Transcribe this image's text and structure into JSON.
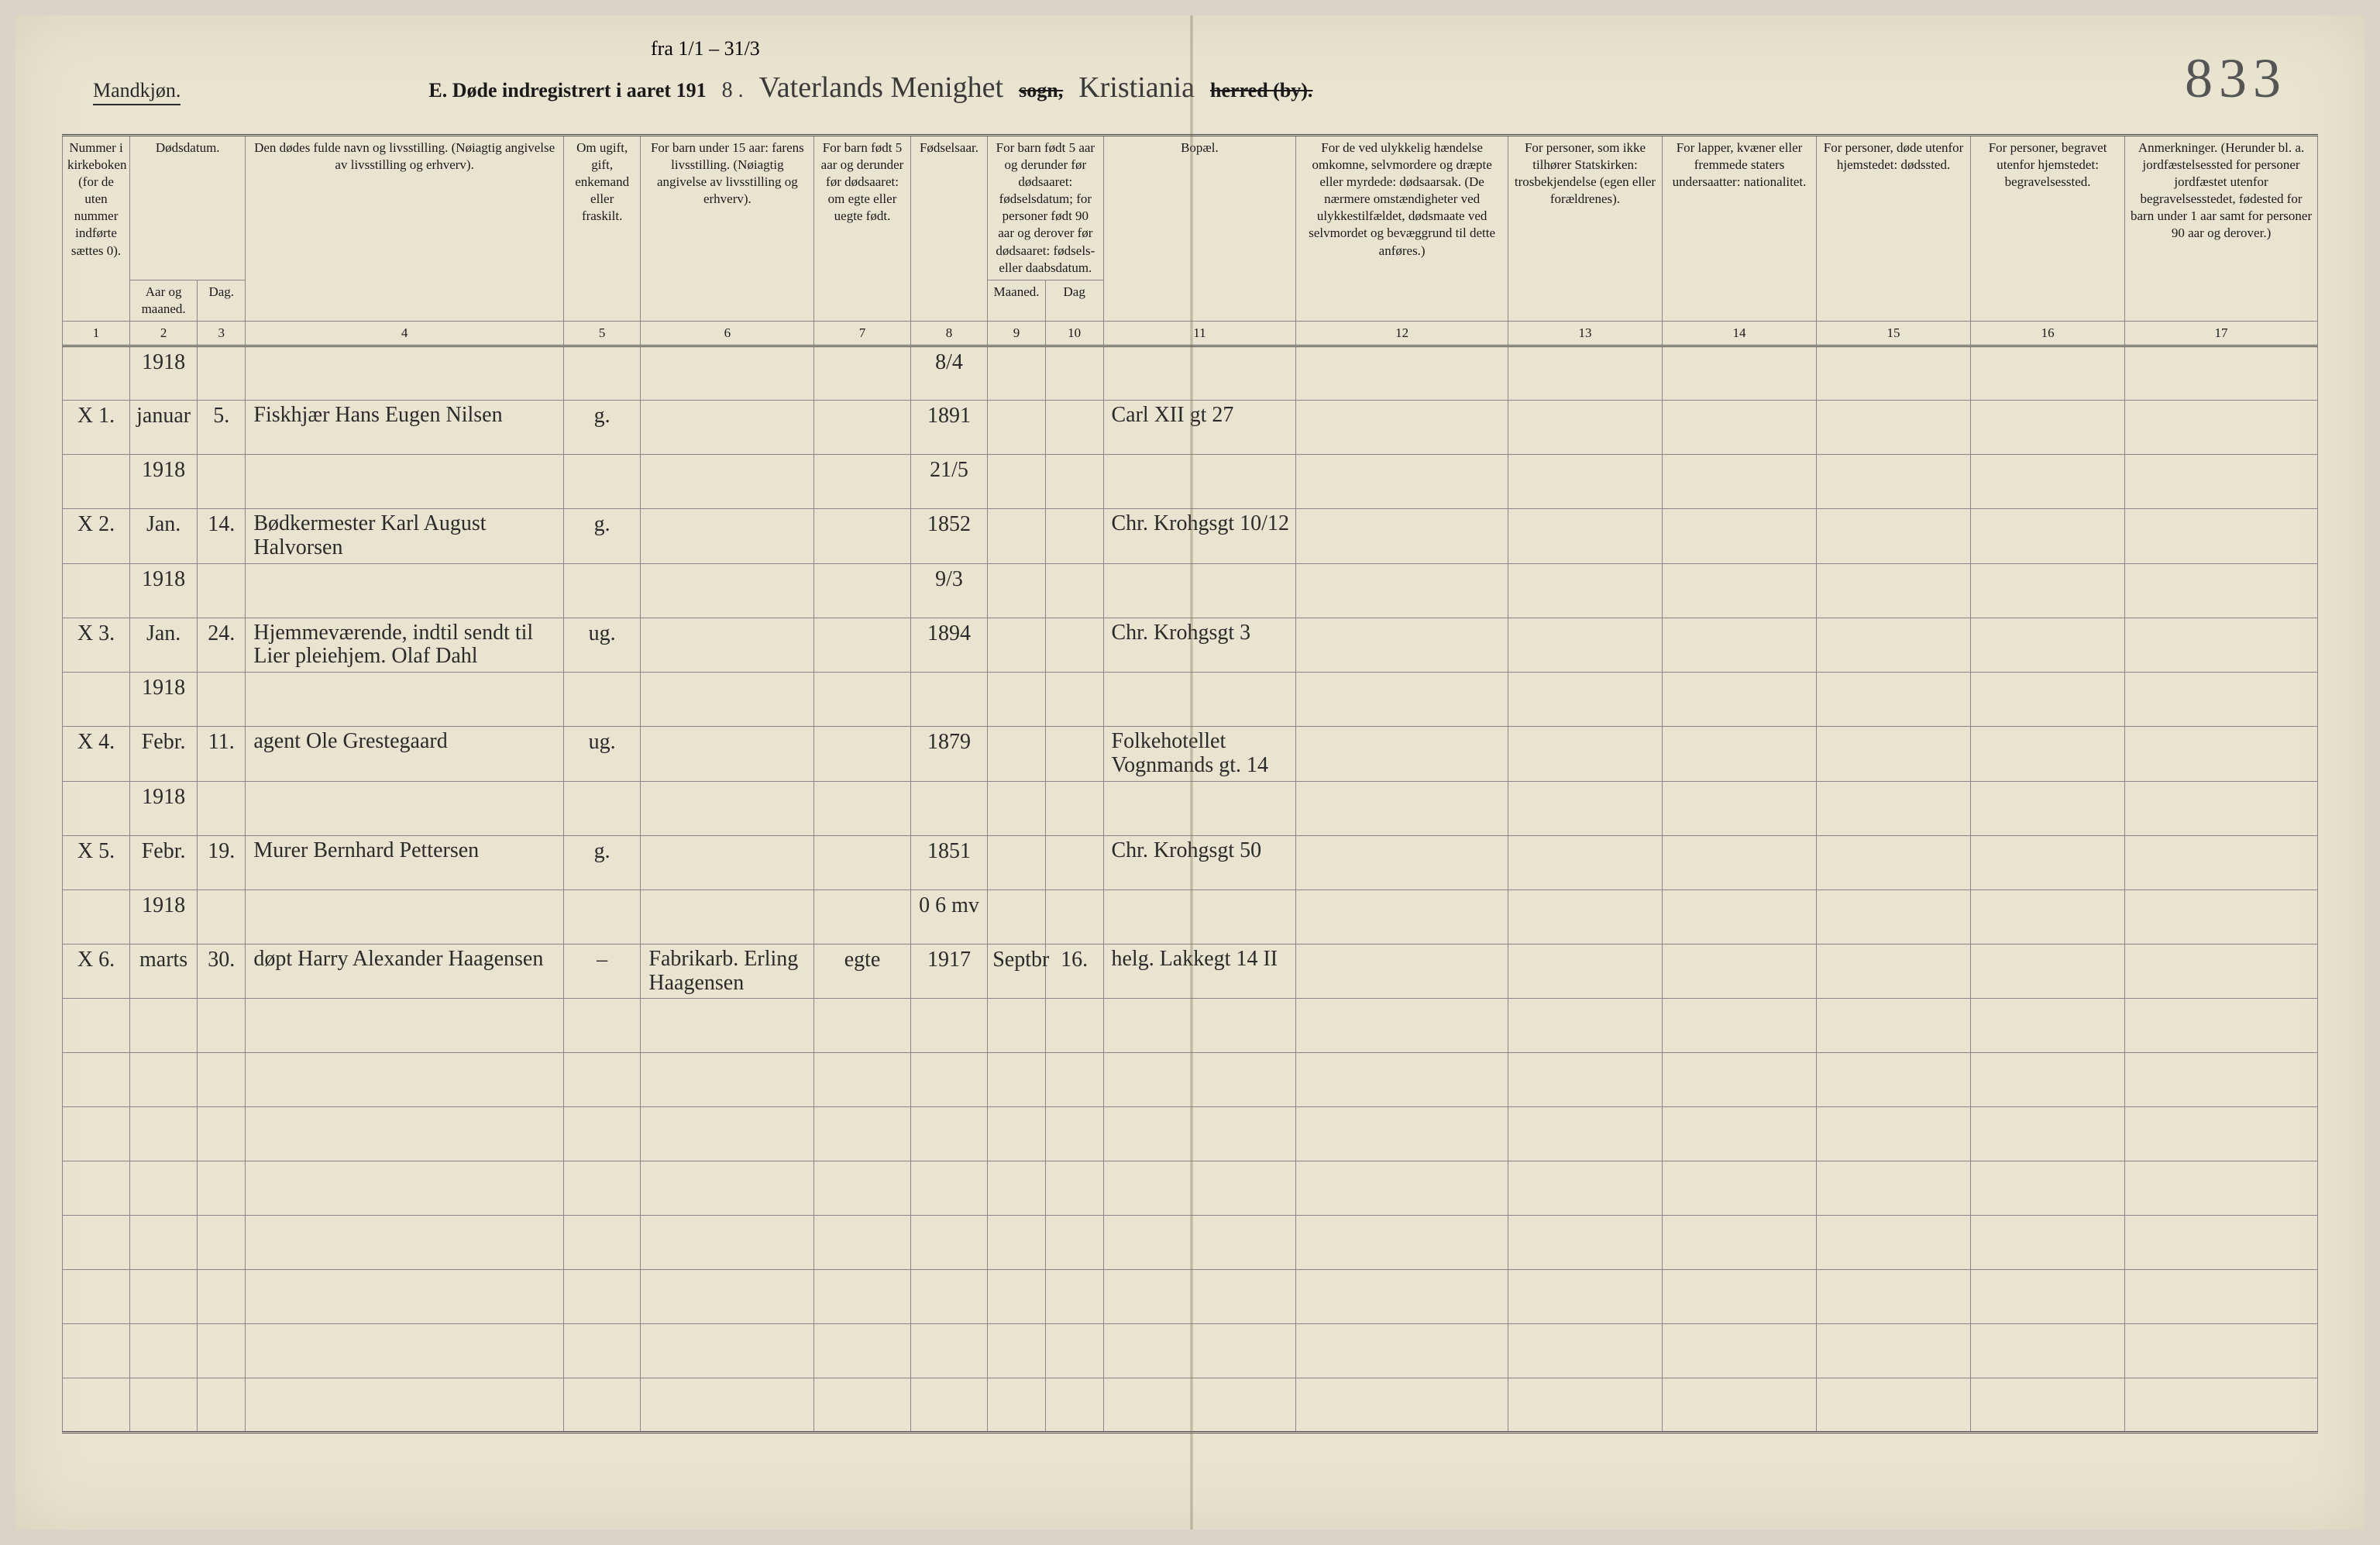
{
  "colors": {
    "paper": "#e8e4d0",
    "ink": "#2a2a2a",
    "rule": "#888",
    "bg": "#d8d4c8"
  },
  "header": {
    "mandkjon": "Mandkjøn.",
    "date_note": "fra 1/1 – 31/3",
    "printed_prefix": "E.  Døde indregistrert i aaret 191",
    "year_digit": "8 .",
    "parish_hand": "Vaterlands Menighet",
    "sogn_struck": "sogn,",
    "city_hand": "Kristiania",
    "herred_struck": "herred (by).",
    "page_number": "833"
  },
  "columns": {
    "c1": "Nummer i kirkeboken (for de uten nummer indførte sættes 0).",
    "c2": "Dødsdatum.",
    "c2a": "Aar og maaned.",
    "c2b": "Dag.",
    "c4": "Den dødes fulde navn og livsstilling. (Nøiagtig angivelse av livsstilling og erhverv).",
    "c5": "Om ugift, gift, enkemand eller fraskilt.",
    "c6": "For barn under 15 aar: farens livsstilling. (Nøiagtig angivelse av livsstilling og erhverv).",
    "c7": "For barn født 5 aar og derunder før dødsaaret: om egte eller uegte født.",
    "c8": "Fødselsaar.",
    "c9_10": "For barn født 5 aar og derunder før dødsaaret: fødselsdatum; for personer født 90 aar og derover før dødsaaret: fødsels- eller daabsdatum.",
    "c9": "Maaned.",
    "c10": "Dag",
    "c11": "Bopæl.",
    "c12": "For de ved ulykkelig hændelse omkomne, selvmordere og dræpte eller myrdede: dødsaarsak. (De nærmere omstændigheter ved ulykkestilfældet, dødsmaate ved selvmordet og bevæggrund til dette anføres.)",
    "c13": "For personer, som ikke tilhører Statskirken: trosbekjendelse (egen eller forældrenes).",
    "c14": "For lapper, kvæner eller fremmede staters undersaatter: nationalitet.",
    "c15": "For personer, døde utenfor hjemstedet: dødssted.",
    "c16": "For personer, begravet utenfor hjemstedet: begravelsessted.",
    "c17": "Anmerkninger. (Herunder bl. a. jordfæstelsessted for personer jordfæstet utenfor begravelsesstedet, fødested for barn under 1 aar samt for personer 90 aar og derover.)"
  },
  "colnums": [
    "1",
    "2",
    "3",
    "4",
    "5",
    "6",
    "7",
    "8",
    "9",
    "10",
    "11",
    "12",
    "13",
    "14",
    "15",
    "16",
    "17"
  ],
  "rows": [
    {
      "num": "X 1.",
      "year": "1918",
      "month": "januar",
      "day": "5.",
      "name": "Fiskhjær Hans Eugen Nilsen",
      "status": "g.",
      "father": "",
      "legit": "",
      "birth_year_frac": "8/4",
      "birth_year": "1891",
      "bm": "",
      "bd": "",
      "residence": "Carl XII gt 27",
      "cause": "",
      "c13": "",
      "c14": "",
      "c15": "",
      "c16": "",
      "c17": ""
    },
    {
      "num": "X 2.",
      "year": "1918",
      "month": "Jan.",
      "day": "14.",
      "name": "Bødkermester Karl August Halvorsen",
      "status": "g.",
      "father": "",
      "legit": "",
      "birth_year_frac": "21/5",
      "birth_year": "1852",
      "bm": "",
      "bd": "",
      "residence": "Chr. Krohgsgt 10/12",
      "cause": "",
      "c13": "",
      "c14": "",
      "c15": "",
      "c16": "",
      "c17": ""
    },
    {
      "num": "X 3.",
      "year": "1918",
      "month": "Jan.",
      "day": "24.",
      "name": "Hjemmeværende, indtil sendt til Lier pleiehjem. Olaf Dahl",
      "status": "ug.",
      "father": "",
      "legit": "",
      "birth_year_frac": "9/3",
      "birth_year": "1894",
      "bm": "",
      "bd": "",
      "residence": "Chr. Krohgsgt 3",
      "cause": "",
      "c13": "",
      "c14": "",
      "c15": "",
      "c16": "",
      "c17": ""
    },
    {
      "num": "X 4.",
      "year": "1918",
      "month": "Febr.",
      "day": "11.",
      "name": "agent Ole Grestegaard",
      "status": "ug.",
      "father": "",
      "legit": "",
      "birth_year_frac": "",
      "birth_year": "1879",
      "bm": "",
      "bd": "",
      "residence": "Folkehotellet Vognmands gt. 14",
      "cause": "",
      "c13": "",
      "c14": "",
      "c15": "",
      "c16": "",
      "c17": ""
    },
    {
      "num": "X 5.",
      "year": "1918",
      "month": "Febr.",
      "day": "19.",
      "name": "Murer Bernhard Pettersen",
      "status": "g.",
      "father": "",
      "legit": "",
      "birth_year_frac": "",
      "birth_year": "1851",
      "bm": "",
      "bd": "",
      "residence": "Chr. Krohgsgt 50",
      "cause": "",
      "c13": "",
      "c14": "",
      "c15": "",
      "c16": "",
      "c17": ""
    },
    {
      "num": "X 6.",
      "year": "1918",
      "month": "marts",
      "day": "30.",
      "name": "døpt Harry Alexander Haagensen",
      "status": "–",
      "father": "Fabrikarb. Erling Haagensen",
      "legit": "egte",
      "birth_year_frac": "0 6 mv",
      "birth_year": "1917",
      "bm": "Septbr",
      "bd": "16.",
      "residence": "helg. Lakkegt 14 II",
      "cause": "",
      "c13": "",
      "c14": "",
      "c15": "",
      "c16": "",
      "c17": ""
    }
  ]
}
